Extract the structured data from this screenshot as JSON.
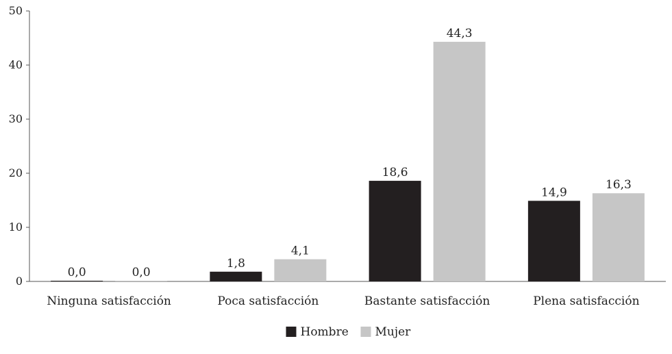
{
  "chart_data": {
    "type": "bar",
    "title": "",
    "xlabel": "",
    "ylabel": "",
    "categories": [
      "Ninguna satisfacción",
      "Poca satisfacción",
      "Bastante satisfacción",
      "Plena satisfacción"
    ],
    "series": [
      {
        "name": "Hombre",
        "values": [
          0.0,
          1.8,
          18.6,
          14.9
        ],
        "labels": [
          "0,0",
          "1,8",
          "18,6",
          "14,9"
        ],
        "color": "#231f20"
      },
      {
        "name": "Mujer",
        "values": [
          0.0,
          4.1,
          44.3,
          16.3
        ],
        "labels": [
          "0,0",
          "4,1",
          "44,3",
          "16,3"
        ],
        "color": "#c6c6c6"
      }
    ],
    "ylim": [
      0,
      50
    ],
    "yticks": [
      0,
      10,
      20,
      30,
      40,
      50
    ],
    "grid": false,
    "legend": "bottom-center",
    "axis_color": "#555555"
  }
}
